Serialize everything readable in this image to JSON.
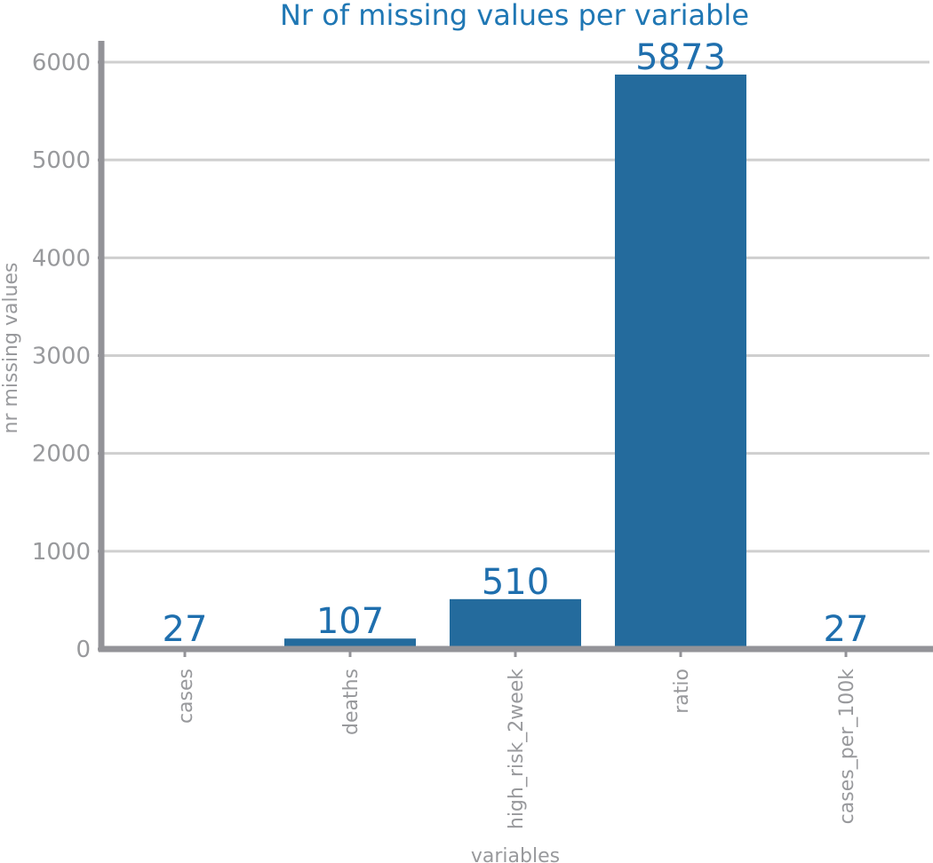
{
  "chart_data": {
    "type": "bar",
    "title": "Nr of missing values per variable",
    "xlabel": "variables",
    "ylabel": "nr missing values",
    "categories": [
      "cases",
      "deaths",
      "high_risk_2week",
      "ratio",
      "cases_per_100k"
    ],
    "values": [
      27,
      107,
      510,
      5873,
      27
    ],
    "data_labels": [
      "27",
      "107",
      "510",
      "5873",
      "27"
    ],
    "ylim": [
      0,
      6200
    ],
    "yticks": [
      0,
      1000,
      2000,
      3000,
      4000,
      5000,
      6000
    ],
    "ytick_labels": [
      "0",
      "1000",
      "2000",
      "3000",
      "4000",
      "5000",
      "6000"
    ],
    "grid": true,
    "legend": "none",
    "colors": {
      "bar": "#246b9d",
      "title": "#1f77b4",
      "data_label": "#1f6fae",
      "axis": "#939398",
      "grid": "#cfcfcf",
      "tick_text": "#98999c"
    }
  }
}
